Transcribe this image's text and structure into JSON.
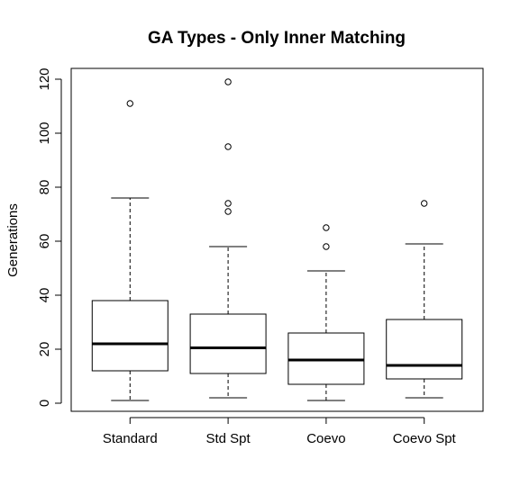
{
  "chart_data": {
    "type": "box",
    "title": "GA Types - Only Inner Matching",
    "xlabel": "",
    "ylabel": "Generations",
    "ylim": [
      -3,
      124
    ],
    "yticks": [
      0,
      20,
      40,
      60,
      80,
      100,
      120
    ],
    "categories": [
      "Standard",
      "Std Spt",
      "Coevo",
      "Coevo Spt"
    ],
    "boxes": [
      {
        "min": 1,
        "q1": 12,
        "median": 22,
        "q3": 38,
        "max": 76,
        "outliers": [
          111
        ]
      },
      {
        "min": 2,
        "q1": 11,
        "median": 20.5,
        "q3": 33,
        "max": 58,
        "outliers": [
          71,
          74,
          95,
          119
        ]
      },
      {
        "min": 1,
        "q1": 7,
        "median": 16,
        "q3": 26,
        "max": 49,
        "outliers": [
          58,
          65
        ]
      },
      {
        "min": 2,
        "q1": 9,
        "median": 14,
        "q3": 31,
        "max": 59,
        "outliers": [
          74
        ]
      }
    ],
    "grid": false,
    "colors": {
      "line": "#000000",
      "background": "#ffffff"
    }
  }
}
